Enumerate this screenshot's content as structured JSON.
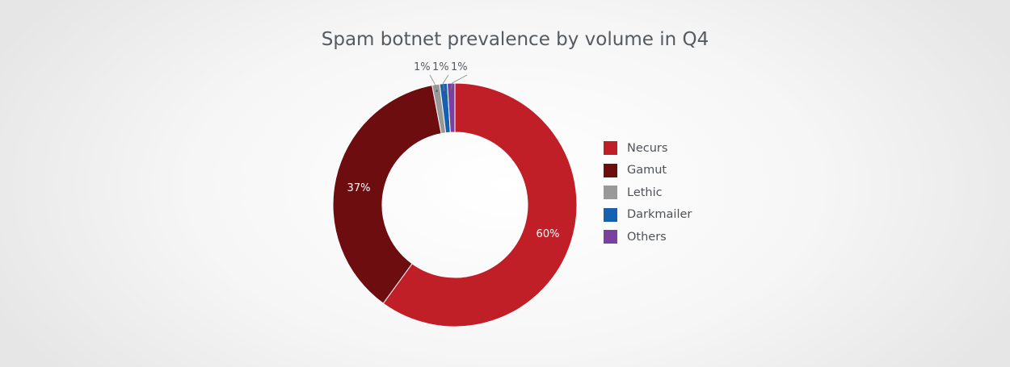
{
  "chart_data": {
    "type": "pie",
    "title": "Spam botnet prevalence by volume in Q4",
    "categories": [
      "Necurs",
      "Gamut",
      "Lethic",
      "Darkmailer",
      "Others"
    ],
    "values": [
      60,
      37,
      1,
      1,
      1
    ],
    "labels": [
      "60%",
      "37%",
      "1%",
      "1%",
      "1%"
    ],
    "colors": [
      "#c11f27",
      "#6d0d10",
      "#999999",
      "#1660b0",
      "#7b3fa0"
    ],
    "donut": true,
    "legend_position": "right"
  }
}
